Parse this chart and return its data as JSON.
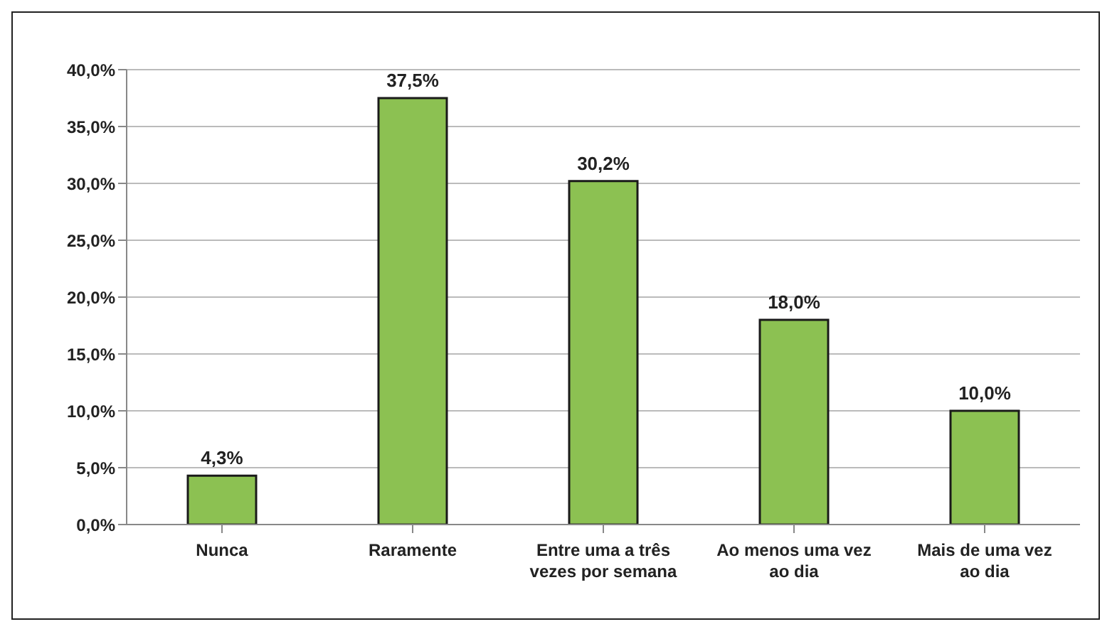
{
  "chart_data": {
    "type": "bar",
    "categories": [
      "Nunca",
      "Raramente",
      "Entre uma a três vezes por semana",
      "Ao menos uma vez ao dia",
      "Mais de uma vez ao dia"
    ],
    "values": [
      4.3,
      37.5,
      30.2,
      18.0,
      10.0
    ],
    "value_labels": [
      "4,3%",
      "37,5%",
      "30,2%",
      "18,0%",
      "10,0%"
    ],
    "color": "#8cc152",
    "ylim": [
      0,
      40
    ],
    "yticks": [
      {
        "value": 0,
        "label": "0,0%"
      },
      {
        "value": 5,
        "label": "5,0%"
      },
      {
        "value": 10,
        "label": "10,0%"
      },
      {
        "value": 15,
        "label": "15,0%"
      },
      {
        "value": 20,
        "label": "20,0%"
      },
      {
        "value": 25,
        "label": "25,0%"
      },
      {
        "value": 30,
        "label": "30,0%"
      },
      {
        "value": 35,
        "label": "35,0%"
      },
      {
        "value": 40,
        "label": "40,0%"
      }
    ],
    "grid": "y"
  }
}
